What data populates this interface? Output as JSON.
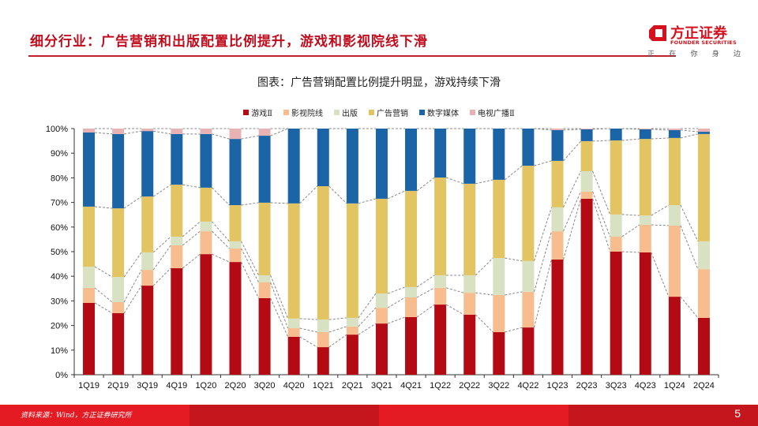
{
  "header": {
    "title": "细分行业：广告营销和出版配置比例提升，游戏和影视院线下滑"
  },
  "logo": {
    "name_cn": "方正证券",
    "name_en": "FOUNDER SECURITIES",
    "slogan": [
      "正",
      "在",
      "你",
      "身",
      "边"
    ],
    "color": "#d4111d"
  },
  "footer": {
    "source": "资料来源：Wind，方正证券研究所",
    "page_number": "5",
    "colors": [
      "#e51b24",
      "#c4161c",
      "#e51b24",
      "#c4161c"
    ]
  },
  "chart_data": {
    "type": "bar",
    "stacked": true,
    "title": "图表：广告营销配置比例提升明显，游戏持续下滑",
    "xlabel": "",
    "ylabel": "",
    "ylim": [
      0,
      100
    ],
    "yticks": [
      "0%",
      "10%",
      "20%",
      "30%",
      "40%",
      "50%",
      "60%",
      "70%",
      "80%",
      "90%",
      "100%"
    ],
    "grid": false,
    "legend_position": "top",
    "connector_lines": "dashed",
    "categories": [
      "1Q19",
      "2Q19",
      "3Q19",
      "4Q19",
      "1Q20",
      "2Q20",
      "3Q20",
      "4Q20",
      "1Q21",
      "2Q21",
      "3Q21",
      "4Q21",
      "1Q22",
      "2Q22",
      "3Q22",
      "4Q22",
      "1Q23",
      "2Q23",
      "3Q23",
      "4Q23",
      "1Q24",
      "2Q24"
    ],
    "series": [
      {
        "name": "游戏Ⅱ",
        "color": "#b30a14",
        "values": [
          29.2,
          25.0,
          36.2,
          43.3,
          49.0,
          45.8,
          31.1,
          15.4,
          11.2,
          16.3,
          20.8,
          23.4,
          28.5,
          24.4,
          17.3,
          19.2,
          46.8,
          71.5,
          50.0,
          49.7,
          31.7,
          23.1
        ]
      },
      {
        "name": "影视院线",
        "color": "#f7bd8f",
        "values": [
          6.1,
          4.5,
          6.4,
          9.3,
          9.3,
          5.5,
          6.4,
          3.5,
          6.1,
          3.3,
          6.4,
          8.0,
          6.8,
          8.9,
          15.1,
          14.5,
          11.5,
          2.9,
          6.1,
          11.2,
          28.9,
          19.8
        ]
      },
      {
        "name": "出版",
        "color": "#d8e2c2",
        "values": [
          8.6,
          10.2,
          7.1,
          3.5,
          3.9,
          2.9,
          2.9,
          3.9,
          5.1,
          3.5,
          5.8,
          4.2,
          5.1,
          7.1,
          15.0,
          12.5,
          9.7,
          8.3,
          9.0,
          3.8,
          8.3,
          11.3
        ]
      },
      {
        "name": "广告营销",
        "color": "#e2c462",
        "values": [
          24.4,
          27.9,
          22.7,
          21.1,
          13.8,
          14.7,
          29.5,
          46.8,
          54.2,
          46.5,
          38.5,
          39.1,
          39.7,
          37.2,
          31.8,
          38.7,
          18.9,
          12.2,
          30.1,
          31.1,
          27.3,
          43.6
        ]
      },
      {
        "name": "数字媒体",
        "color": "#1b65a6",
        "values": [
          30.1,
          30.2,
          26.6,
          20.6,
          21.8,
          26.9,
          27.2,
          30.4,
          23.4,
          30.4,
          28.5,
          25.3,
          19.9,
          22.4,
          20.8,
          15.1,
          12.5,
          4.8,
          4.8,
          3.9,
          3.2,
          0.9
        ]
      },
      {
        "name": "电视广播Ⅱ",
        "color": "#e8b2b4",
        "values": [
          1.6,
          2.2,
          1.0,
          2.2,
          2.2,
          4.2,
          2.9,
          0.0,
          0.0,
          0.0,
          0.0,
          0.0,
          0.0,
          0.0,
          0.0,
          0.0,
          0.6,
          0.3,
          0.0,
          0.3,
          0.6,
          1.3
        ]
      }
    ]
  }
}
